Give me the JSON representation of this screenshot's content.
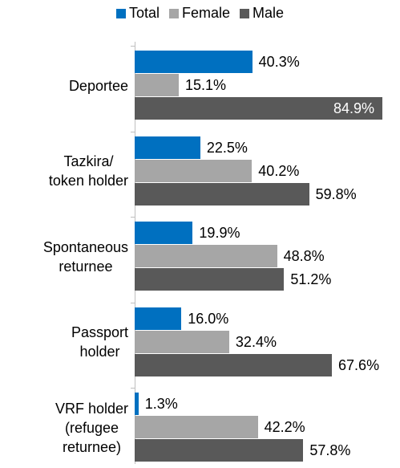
{
  "chart_data": {
    "type": "bar",
    "orientation": "horizontal",
    "categories": [
      "Deportee",
      "Tazkira/\ntoken holder",
      "Spontaneous\nreturnee",
      "Passport\nholder",
      "VRF holder\n(refugee\nreturnee)"
    ],
    "series": [
      {
        "name": "Total",
        "color": "#0070c0",
        "values": [
          40.3,
          22.5,
          19.9,
          16.0,
          1.3
        ],
        "value_labels": [
          "40.3%",
          "22.5%",
          "19.9%",
          "16.0%",
          "1.3%"
        ]
      },
      {
        "name": "Female",
        "color": "#a6a6a6",
        "values": [
          15.1,
          40.2,
          48.8,
          32.4,
          42.2
        ],
        "value_labels": [
          "15.1%",
          "40.2%",
          "48.8%",
          "32.4%",
          "42.2%"
        ]
      },
      {
        "name": "Male",
        "color": "#595959",
        "values": [
          84.9,
          59.8,
          51.2,
          67.6,
          57.8
        ],
        "value_labels": [
          "84.9%",
          "59.8%",
          "51.2%",
          "67.6%",
          "57.8%"
        ]
      }
    ],
    "legend": "top"
  }
}
